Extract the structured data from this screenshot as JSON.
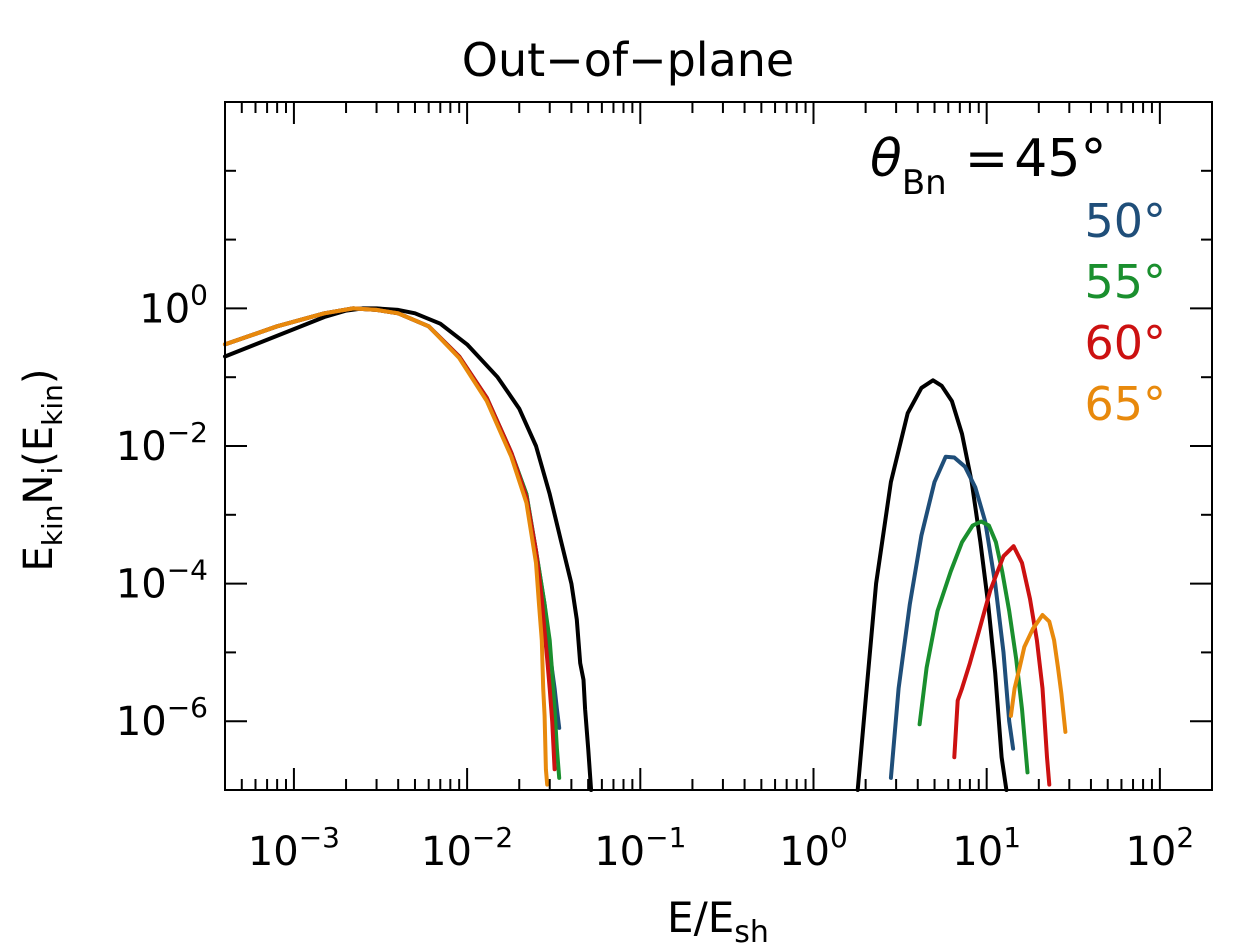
{
  "chart_data": {
    "type": "line",
    "title": "Out−of−plane",
    "xlabel": {
      "main": "E/E",
      "sub": "sh"
    },
    "ylabel": {
      "parts": [
        {
          "t": "E",
          "s": "base"
        },
        {
          "t": "kin",
          "s": "sub"
        },
        {
          "t": "N",
          "s": "base"
        },
        {
          "t": "i",
          "s": "sub"
        },
        {
          "t": "(E",
          "s": "base"
        },
        {
          "t": "kin",
          "s": "sub"
        },
        {
          "t": ")",
          "s": "base"
        }
      ]
    },
    "x_scale": "log",
    "y_scale": "log",
    "xlim": [
      0.0004,
      200
    ],
    "ylim": [
      1e-07,
      1000
    ],
    "x_ticks": [
      {
        "value": 0.001,
        "base": "10",
        "exp": "−3"
      },
      {
        "value": 0.01,
        "base": "10",
        "exp": "−2"
      },
      {
        "value": 0.1,
        "base": "10",
        "exp": "−1"
      },
      {
        "value": 1,
        "base": "10",
        "exp": "0"
      },
      {
        "value": 10,
        "base": "10",
        "exp": "1"
      },
      {
        "value": 100,
        "base": "10",
        "exp": "2"
      }
    ],
    "y_ticks": [
      {
        "value": 1,
        "base": "10",
        "exp": "0"
      },
      {
        "value": 0.01,
        "base": "10",
        "exp": "−2"
      },
      {
        "value": 0.0001,
        "base": "10",
        "exp": "−4"
      },
      {
        "value": 1e-06,
        "base": "10",
        "exp": "−6"
      }
    ],
    "y_minor_ticks": [
      1e-07,
      1e-05,
      0.001,
      0.1,
      10,
      100
    ],
    "legend": {
      "position": "top-right",
      "symbol": "θ",
      "symbol_sub": "Bn",
      "equals": "=",
      "entries": [
        "45°",
        "50°",
        "55°",
        "60°",
        "65°"
      ]
    },
    "series": [
      {
        "name": "45°",
        "color": "#000000",
        "segments": [
          [
            [
              0.0004,
              0.2
            ],
            [
              0.0006,
              0.3
            ],
            [
              0.001,
              0.5
            ],
            [
              0.0015,
              0.75
            ],
            [
              0.002,
              0.93
            ],
            [
              0.0025,
              1.0
            ],
            [
              0.003,
              1.0
            ],
            [
              0.004,
              0.95
            ],
            [
              0.005,
              0.85
            ],
            [
              0.007,
              0.6
            ],
            [
              0.01,
              0.3
            ],
            [
              0.015,
              0.1
            ],
            [
              0.02,
              0.035
            ],
            [
              0.025,
              0.01
            ],
            [
              0.03,
              0.002
            ],
            [
              0.035,
              0.0004
            ],
            [
              0.04,
              0.0001
            ],
            [
              0.043,
              3e-05
            ],
            [
              0.045,
              7e-06
            ],
            [
              0.047,
              4e-06
            ],
            [
              0.048,
              1.5e-06
            ],
            [
              0.05,
              4e-07
            ],
            [
              0.052,
              1e-07
            ]
          ],
          [
            [
              1.8,
              1e-07
            ],
            [
              2,
              2e-06
            ],
            [
              2.3,
              0.0001
            ],
            [
              2.8,
              0.003
            ],
            [
              3.5,
              0.03
            ],
            [
              4.2,
              0.07
            ],
            [
              4.9,
              0.09
            ],
            [
              5.5,
              0.075
            ],
            [
              6.3,
              0.045
            ],
            [
              7.2,
              0.015
            ],
            [
              8.2,
              0.003
            ],
            [
              9.2,
              0.0004
            ],
            [
              10.2,
              5e-05
            ],
            [
              11.2,
              5e-06
            ],
            [
              12.2,
              3e-07
            ],
            [
              13,
              1e-07
            ]
          ]
        ]
      },
      {
        "name": "50°",
        "color": "#1f4e79",
        "segments": [
          [
            [
              0.0004,
              0.3
            ],
            [
              0.0008,
              0.55
            ],
            [
              0.0015,
              0.85
            ],
            [
              0.0022,
              1.0
            ],
            [
              0.003,
              0.95
            ],
            [
              0.004,
              0.85
            ],
            [
              0.006,
              0.55
            ],
            [
              0.009,
              0.2
            ],
            [
              0.013,
              0.05
            ],
            [
              0.018,
              0.008
            ],
            [
              0.022,
              0.002
            ],
            [
              0.025,
              0.0003
            ],
            [
              0.028,
              5e-05
            ],
            [
              0.03,
              1e-05
            ],
            [
              0.032,
              3e-06
            ],
            [
              0.033,
              1.5e-06
            ],
            [
              0.034,
              8e-07
            ]
          ],
          [
            [
              2.8,
              1.5e-07
            ],
            [
              3.1,
              3e-06
            ],
            [
              3.6,
              5e-05
            ],
            [
              4.2,
              0.0005
            ],
            [
              5,
              0.003
            ],
            [
              5.8,
              0.007
            ],
            [
              6.5,
              0.0068
            ],
            [
              7.5,
              0.005
            ],
            [
              8.6,
              0.0025
            ],
            [
              9.8,
              0.0008
            ],
            [
              11.2,
              0.0001
            ],
            [
              12.5,
              1e-05
            ],
            [
              13.5,
              1e-06
            ],
            [
              14.2,
              4e-07
            ]
          ]
        ]
      },
      {
        "name": "55°",
        "color": "#1a8f2e",
        "segments": [
          [
            [
              0.0004,
              0.3
            ],
            [
              0.0008,
              0.55
            ],
            [
              0.0015,
              0.85
            ],
            [
              0.0022,
              1.0
            ],
            [
              0.003,
              0.95
            ],
            [
              0.004,
              0.85
            ],
            [
              0.006,
              0.55
            ],
            [
              0.009,
              0.2
            ],
            [
              0.013,
              0.05
            ],
            [
              0.018,
              0.008
            ],
            [
              0.022,
              0.002
            ],
            [
              0.025,
              0.0003
            ],
            [
              0.028,
              5e-05
            ],
            [
              0.03,
              1.5e-05
            ],
            [
              0.031,
              5e-06
            ],
            [
              0.032,
              1.5e-06
            ],
            [
              0.033,
              4e-07
            ],
            [
              0.034,
              1.5e-07
            ]
          ],
          [
            [
              4.1,
              9e-07
            ],
            [
              4.5,
              6e-06
            ],
            [
              5.2,
              4e-05
            ],
            [
              6.2,
              0.00015
            ],
            [
              7.2,
              0.0004
            ],
            [
              8.3,
              0.0007
            ],
            [
              9.3,
              0.0008
            ],
            [
              10.3,
              0.0007
            ],
            [
              11.3,
              0.0004
            ],
            [
              12.3,
              0.00015
            ],
            [
              13.5,
              4e-05
            ],
            [
              14.8,
              8e-06
            ],
            [
              16,
              1.5e-06
            ],
            [
              17.2,
              1.8e-07
            ]
          ]
        ]
      },
      {
        "name": "60°",
        "color": "#cc1111",
        "segments": [
          [
            [
              0.0004,
              0.3
            ],
            [
              0.0008,
              0.55
            ],
            [
              0.0015,
              0.85
            ],
            [
              0.0022,
              1.0
            ],
            [
              0.003,
              0.95
            ],
            [
              0.004,
              0.85
            ],
            [
              0.006,
              0.55
            ],
            [
              0.009,
              0.2
            ],
            [
              0.013,
              0.05
            ],
            [
              0.018,
              0.008
            ],
            [
              0.022,
              0.0018
            ],
            [
              0.025,
              0.0003
            ],
            [
              0.027,
              6e-05
            ],
            [
              0.028,
              2e-05
            ],
            [
              0.029,
              8e-06
            ],
            [
              0.03,
              3e-06
            ],
            [
              0.031,
              1e-06
            ],
            [
              0.032,
              2e-07
            ]
          ],
          [
            [
              6.5,
              3e-07
            ],
            [
              6.8,
              2e-06
            ],
            [
              7.2,
              3e-06
            ],
            [
              8,
              7e-06
            ],
            [
              9,
              2e-05
            ],
            [
              10.5,
              8e-05
            ],
            [
              12.5,
              0.00025
            ],
            [
              14.3,
              0.00035
            ],
            [
              16,
              0.0002
            ],
            [
              17.8,
              6e-05
            ],
            [
              19.5,
              1.5e-05
            ],
            [
              21,
              3e-06
            ],
            [
              22.3,
              3e-07
            ],
            [
              23,
              1.2e-07
            ]
          ]
        ]
      },
      {
        "name": "65°",
        "color": "#e8890c",
        "segments": [
          [
            [
              0.0004,
              0.3
            ],
            [
              0.0008,
              0.55
            ],
            [
              0.0015,
              0.85
            ],
            [
              0.0022,
              1.0
            ],
            [
              0.003,
              0.95
            ],
            [
              0.004,
              0.85
            ],
            [
              0.006,
              0.55
            ],
            [
              0.009,
              0.19
            ],
            [
              0.013,
              0.045
            ],
            [
              0.018,
              0.007
            ],
            [
              0.022,
              0.0015
            ],
            [
              0.025,
              0.0002
            ],
            [
              0.026,
              5e-05
            ],
            [
              0.027,
              1.5e-05
            ],
            [
              0.0275,
              3e-06
            ],
            [
              0.028,
              1.2e-06
            ],
            [
              0.0285,
              2e-07
            ],
            [
              0.029,
              1.2e-07
            ]
          ],
          [
            [
              13.8,
              1.2e-06
            ],
            [
              14.5,
              3e-06
            ],
            [
              15.5,
              6e-06
            ],
            [
              16.5,
              1.2e-05
            ],
            [
              18.5,
              2.2e-05
            ],
            [
              21,
              3.5e-05
            ],
            [
              23,
              2.8e-05
            ],
            [
              24.5,
              1.5e-05
            ],
            [
              25.8,
              6e-06
            ],
            [
              27,
              2.5e-06
            ],
            [
              28.5,
              7e-07
            ]
          ]
        ]
      }
    ]
  }
}
